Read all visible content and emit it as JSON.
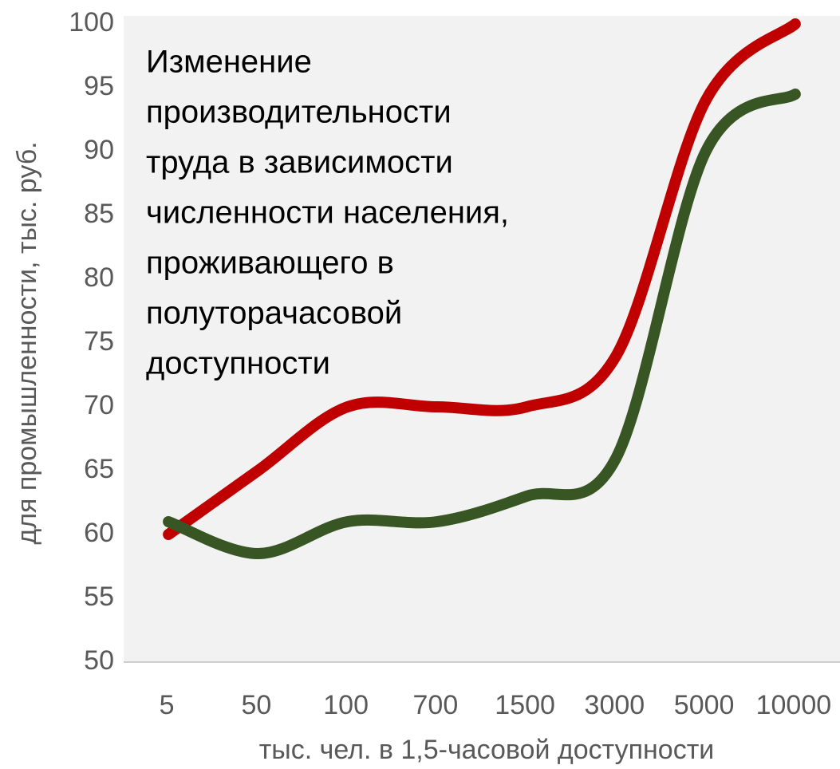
{
  "chart_data": {
    "type": "line",
    "annotation": [
      "Изменение",
      "производительности",
      "труда в зависимости",
      "численности населения,",
      "проживающего в",
      "полуторачасовой",
      "доступности"
    ],
    "x_label": "тыс. чел. в 1,5-часовой доступности",
    "y_label": "для промышленности, тыс. руб.",
    "categories": [
      "5",
      "50",
      "100",
      "700",
      "1500",
      "3000",
      "5000",
      "10000"
    ],
    "series": [
      {
        "color": "#c00000",
        "values": [
          60,
          65,
          70,
          70,
          70,
          74,
          94,
          100
        ]
      },
      {
        "color": "#375623",
        "values": [
          61,
          58.5,
          61,
          61,
          63,
          66,
          90,
          94.5
        ]
      }
    ],
    "ylim": [
      50,
      100
    ],
    "yticks": [
      50,
      55,
      60,
      65,
      70,
      75,
      80,
      85,
      90,
      95,
      100
    ]
  }
}
